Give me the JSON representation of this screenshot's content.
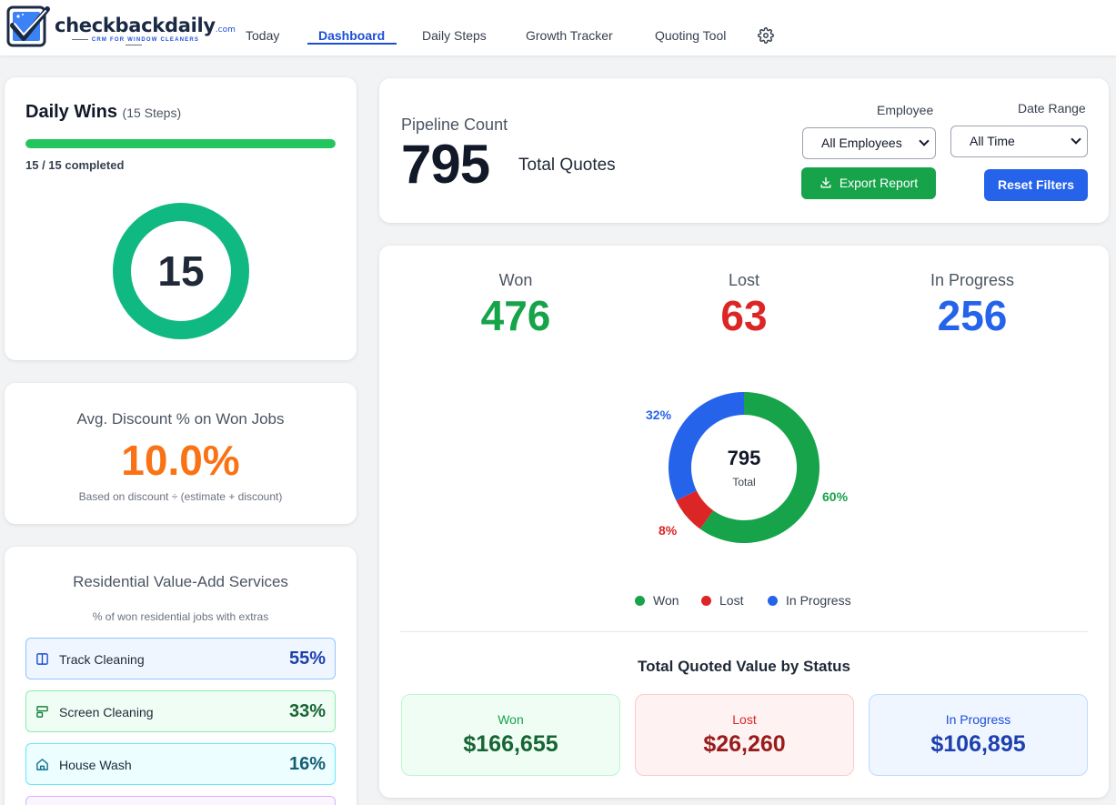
{
  "app": {
    "logo": {
      "brand": "checkbackdaily",
      "suffix": ".com",
      "tagline": "CRM FOR WINDOW CLEANERS"
    }
  },
  "nav": {
    "items": [
      {
        "label": "Today",
        "active": false
      },
      {
        "label": "Dashboard",
        "active": true
      },
      {
        "label": "Daily Steps",
        "active": false
      },
      {
        "label": "Growth Tracker",
        "active": false
      },
      {
        "label": "Quoting Tool",
        "active": false
      }
    ],
    "settings_icon": "gear-icon"
  },
  "daily_wins": {
    "title": "Daily Wins",
    "subtitle": "(15 Steps)",
    "completed": 15,
    "total": 15,
    "completed_label": "15 / 15 completed",
    "ring_value": "15",
    "bar_color": "#22c55e",
    "ring_color": "#10b981"
  },
  "avg_discount": {
    "title": "Avg. Discount % on Won Jobs",
    "value": "10.0%",
    "note": "Based on discount ÷ (estimate + discount)",
    "color": "#f97316"
  },
  "residential": {
    "title": "Residential Value-Add Services",
    "subtitle": "% of won residential jobs with extras",
    "items": [
      {
        "label": "Track Cleaning",
        "value": "55%",
        "icon": "columns-icon"
      },
      {
        "label": "Screen Cleaning",
        "value": "33%",
        "icon": "screen-icon"
      },
      {
        "label": "House Wash",
        "value": "16%",
        "icon": "house-icon"
      }
    ]
  },
  "pipeline": {
    "label": "Pipeline Count",
    "count": "795",
    "count_label": "Total Quotes"
  },
  "filters": {
    "employee_label": "Employee",
    "employee_value": "All Employees",
    "date_label": "Date Range",
    "date_value": "All Time",
    "export_label": "Export Report",
    "reset_label": "Reset Filters"
  },
  "stats": {
    "won": {
      "label": "Won",
      "value": "476"
    },
    "lost": {
      "label": "Lost",
      "value": "63"
    },
    "in_progress": {
      "label": "In Progress",
      "value": "256"
    }
  },
  "chart_data": {
    "type": "pie",
    "center_value": "795",
    "center_label": "Total",
    "slices": [
      {
        "name": "Won",
        "value": 476,
        "label": "60%",
        "color": "#16a34a"
      },
      {
        "name": "Lost",
        "value": 63,
        "label": "8%",
        "color": "#dc2626"
      },
      {
        "name": "In Progress",
        "value": 256,
        "label": "32%",
        "color": "#2563eb"
      }
    ],
    "legend": "bottom"
  },
  "quoted_value": {
    "title": "Total Quoted Value by Status",
    "won": {
      "label": "Won",
      "value": "$166,655"
    },
    "lost": {
      "label": "Lost",
      "value": "$26,260"
    },
    "in_progress": {
      "label": "In Progress",
      "value": "$106,895"
    }
  },
  "colors": {
    "won": "#16a34a",
    "lost": "#dc2626",
    "in_progress": "#2563eb",
    "accent": "#1d4ed8"
  }
}
